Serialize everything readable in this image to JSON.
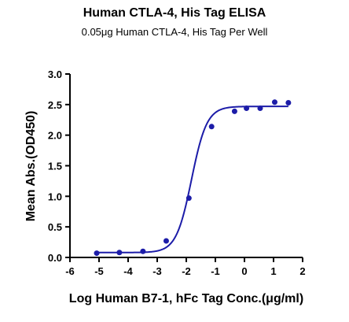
{
  "chart_data": {
    "type": "scatter",
    "title": "Human CTLA-4, His Tag ELISA",
    "subtitle": "0.05μg Human CTLA-4, His Tag Per Well",
    "xlabel": "Log Human B7-1, hFc Tag Conc.(μg/ml)",
    "ylabel": "Mean Abs.(OD450)",
    "xlim": [
      -6,
      2
    ],
    "ylim": [
      0,
      3
    ],
    "xticks": [
      "-6",
      "-5",
      "-4",
      "-3",
      "-2",
      "-1",
      "0",
      "1",
      "2"
    ],
    "yticks": [
      "0.0",
      "0.5",
      "1.0",
      "1.5",
      "2.0",
      "2.5",
      "3.0"
    ],
    "grid": false,
    "colors": {
      "series": "#1c1ca8"
    },
    "series": [
      {
        "x": [
          -5.08,
          -4.3,
          -3.49,
          -2.69,
          -1.91,
          -1.13,
          -0.34,
          0.07,
          0.54,
          1.04,
          1.51
        ],
        "y": [
          0.07,
          0.08,
          0.1,
          0.27,
          0.97,
          2.14,
          2.39,
          2.44,
          2.44,
          2.54,
          2.53
        ]
      }
    ],
    "fit": {
      "bottom": 0.08,
      "top": 2.47,
      "logEC50": -1.82,
      "hill": 1.65
    }
  }
}
